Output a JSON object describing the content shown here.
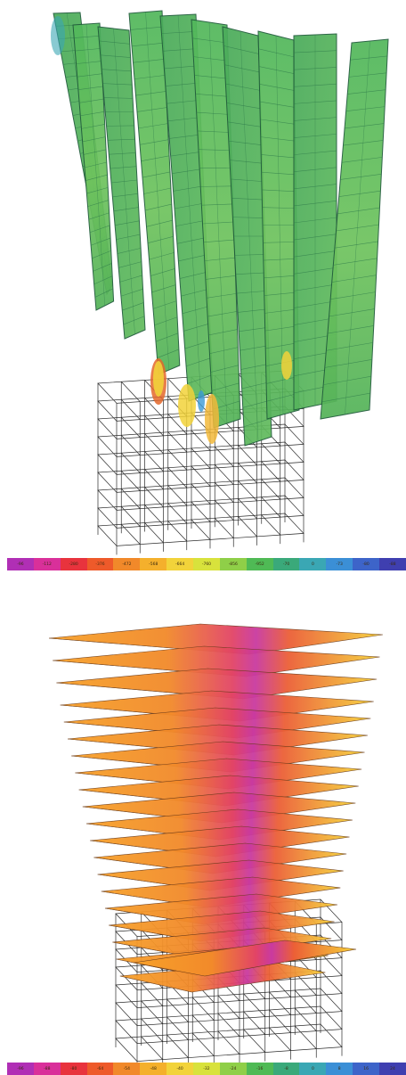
{
  "figures": [
    {
      "name": "shear-wall-contour",
      "wall_colors": [
        "#4cb35a",
        "#58bd5c",
        "#6ec861",
        "#45a85a"
      ],
      "hot_colors": [
        "#f2d23a",
        "#e4672a",
        "#3b9ad6"
      ],
      "legend": {
        "colors": [
          "#b02fb5",
          "#d9309a",
          "#e8333d",
          "#ee5a2a",
          "#f1892a",
          "#f4b02c",
          "#f2d33a",
          "#d8e23c",
          "#8fcf48",
          "#4fba55",
          "#3aa97a",
          "#3aa7b4",
          "#3b8fd6",
          "#3d64c9",
          "#3f3fb0"
        ],
        "labels": [
          "-96",
          "-112",
          "-280",
          "-376",
          "-472",
          "-568",
          "-664",
          "-760",
          "-856",
          "-952",
          "-70",
          "0",
          "-73",
          "-80",
          "-88"
        ]
      }
    },
    {
      "name": "floor-slab-contour",
      "slab_colors": [
        "#f7a12a",
        "#f28a2a",
        "#ec5f36",
        "#e24466",
        "#c93aa0"
      ],
      "legend": {
        "colors": [
          "#b02fb5",
          "#d9309a",
          "#e8333d",
          "#ee5a2a",
          "#f1892a",
          "#f4b02c",
          "#f2d33a",
          "#d8e23c",
          "#8fcf48",
          "#4fba55",
          "#3aa97a",
          "#3aa7b4",
          "#3b8fd6",
          "#3d64c9",
          "#3f3fb0"
        ],
        "labels": [
          "-96",
          "-88",
          "-80",
          "-64",
          "-54",
          "-48",
          "-40",
          "-32",
          "-24",
          "-16",
          "-8",
          "0",
          "8",
          "16",
          "24"
        ]
      }
    }
  ]
}
